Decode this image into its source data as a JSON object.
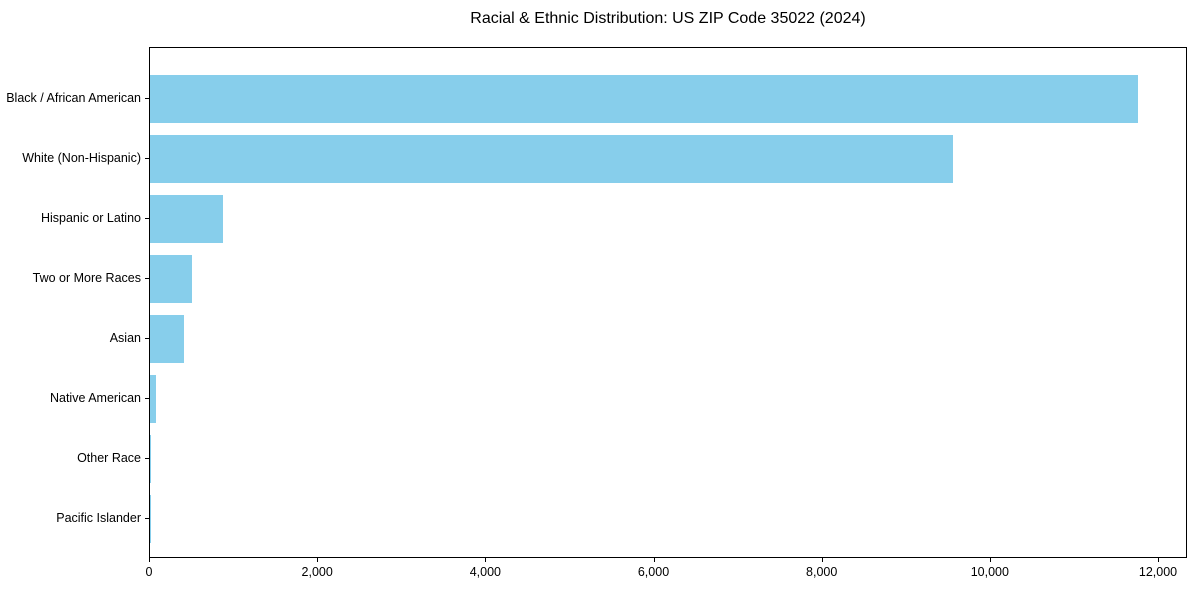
{
  "chart_data": {
    "type": "bar",
    "orientation": "horizontal",
    "title": "Racial & Ethnic Distribution: US ZIP Code 35022 (2024)",
    "categories": [
      "Black / African American",
      "White (Non-Hispanic)",
      "Hispanic or Latino",
      "Two or More Races",
      "Asian",
      "Native American",
      "Other Race",
      "Pacific Islander"
    ],
    "values": [
      11750,
      9550,
      865,
      500,
      400,
      75,
      15,
      5
    ],
    "bar_color": "#87CEEB",
    "xlabel": "",
    "ylabel": "",
    "xlim": [
      0,
      12000
    ],
    "xticks": [
      0,
      2000,
      4000,
      6000,
      8000,
      10000,
      12000
    ],
    "xtick_labels": [
      "0",
      "2,000",
      "4,000",
      "6,000",
      "8,000",
      "10,000",
      "12,000"
    ],
    "grid": false,
    "legend": null,
    "frame": "full-box",
    "text_color": "#000000"
  }
}
